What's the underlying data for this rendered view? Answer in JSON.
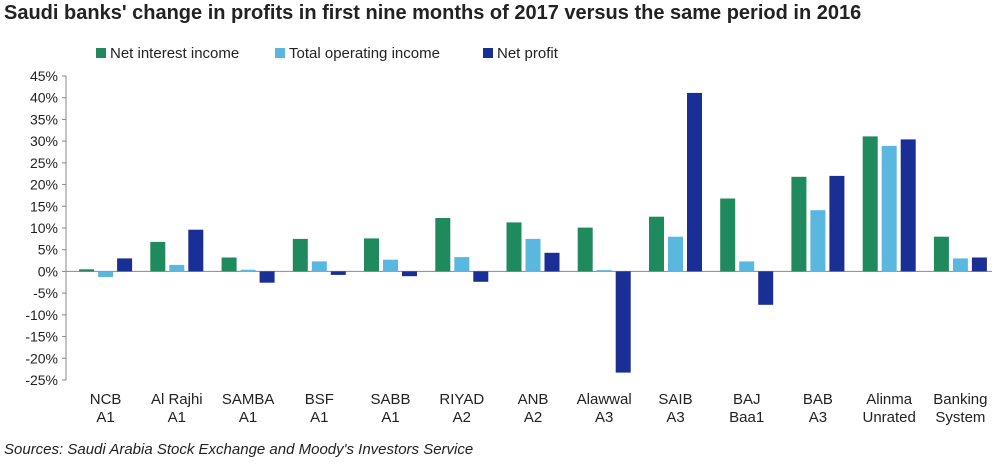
{
  "title": "Saudi banks' change in profits in first nine months of 2017 versus the same period in 2016",
  "source": "Sources: Saudi Arabia Stock Exchange and Moody's Investors Service",
  "colors": {
    "net_interest_income": "#1f8a5e",
    "total_operating_income": "#5ab8e0",
    "net_profit": "#1a2f96"
  },
  "chart_data": {
    "type": "bar",
    "title": "Saudi banks' change in profits in first nine months of 2017 versus the same period in 2016",
    "xlabel": "",
    "ylabel": "",
    "ylim": [
      -25,
      45
    ],
    "yticks": [
      "45%",
      "40%",
      "35%",
      "30%",
      "25%",
      "20%",
      "15%",
      "10%",
      "5%",
      "0%",
      "-5%",
      "-10%",
      "-15%",
      "-20%",
      "-25%"
    ],
    "ytick_values": [
      45,
      40,
      35,
      30,
      25,
      20,
      15,
      10,
      5,
      0,
      -5,
      -10,
      -15,
      -20,
      -25
    ],
    "grid": false,
    "legend_position": "top-left",
    "categories": [
      [
        "NCB",
        "A1"
      ],
      [
        "Al Rajhi",
        "A1"
      ],
      [
        "SAMBA",
        "A1"
      ],
      [
        "BSF",
        "A1"
      ],
      [
        "SABB",
        "A1"
      ],
      [
        "RIYAD",
        "A2"
      ],
      [
        "ANB",
        "A2"
      ],
      [
        "Alawwal",
        "A3"
      ],
      [
        "SAIB",
        "A3"
      ],
      [
        "BAJ",
        "Baa1"
      ],
      [
        "BAB",
        "A3"
      ],
      [
        "Alinma",
        "Unrated"
      ],
      [
        "Banking",
        "System"
      ]
    ],
    "series": [
      {
        "name": "Net interest income",
        "color": "#1f8a5e",
        "values": [
          0.5,
          6.8,
          3.2,
          7.5,
          7.6,
          12.3,
          11.3,
          10.1,
          12.6,
          16.8,
          21.8,
          31.1,
          8.0
        ]
      },
      {
        "name": "Total operating income",
        "color": "#5ab8e0",
        "values": [
          -1.3,
          1.5,
          0.4,
          2.3,
          2.7,
          3.3,
          7.5,
          0.3,
          8.0,
          2.3,
          14.1,
          28.9,
          3.0
        ]
      },
      {
        "name": "Net profit",
        "color": "#1a2f96",
        "values": [
          3.0,
          9.6,
          -2.6,
          -0.8,
          -1.1,
          -2.4,
          4.3,
          -23.3,
          41.1,
          -7.7,
          22.0,
          30.4,
          3.2
        ]
      }
    ]
  }
}
